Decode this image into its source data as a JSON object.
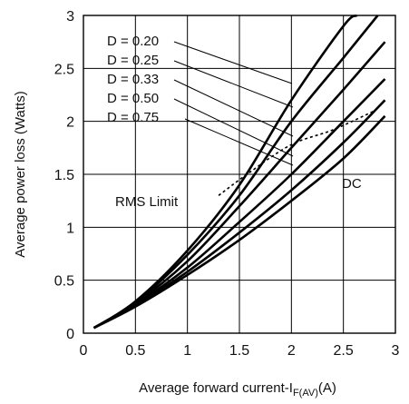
{
  "chart_data": {
    "type": "line",
    "xlabel": "Average forward current-I",
    "xlabel_sub": "F(AV)",
    "xlabel_unit": "(A)",
    "ylabel": "Average power loss (Watts)",
    "xlim": [
      0,
      3
    ],
    "ylim": [
      0,
      3
    ],
    "x_ticks": [
      "0",
      "0.5",
      "1",
      "1.5",
      "2",
      "2.5",
      "3"
    ],
    "y_ticks": [
      "0",
      "0.5",
      "1",
      "1.5",
      "2",
      "2.5",
      "3"
    ],
    "grid": true,
    "series": [
      {
        "name": "D = 0.20",
        "x": [
          0.1,
          0.5,
          1.0,
          1.5,
          2.0,
          2.5,
          2.63
        ],
        "y": [
          0.05,
          0.3,
          0.78,
          1.4,
          2.2,
          2.9,
          3.0
        ]
      },
      {
        "name": "D = 0.25",
        "x": [
          0.1,
          0.5,
          1.0,
          1.5,
          2.0,
          2.5,
          2.83
        ],
        "y": [
          0.05,
          0.29,
          0.74,
          1.3,
          2.0,
          2.6,
          3.0
        ]
      },
      {
        "name": "D = 0.33",
        "x": [
          0.1,
          0.5,
          1.0,
          1.5,
          2.0,
          2.5,
          2.9
        ],
        "y": [
          0.05,
          0.28,
          0.68,
          1.2,
          1.75,
          2.3,
          2.75
        ]
      },
      {
        "name": "D = 0.50",
        "x": [
          0.1,
          0.5,
          1.0,
          1.5,
          2.0,
          2.5,
          2.9
        ],
        "y": [
          0.05,
          0.27,
          0.62,
          1.05,
          1.5,
          2.0,
          2.4
        ]
      },
      {
        "name": "D = 0.75",
        "x": [
          0.1,
          0.5,
          1.0,
          1.5,
          2.0,
          2.5,
          2.9
        ],
        "y": [
          0.05,
          0.26,
          0.58,
          0.95,
          1.35,
          1.8,
          2.2
        ]
      },
      {
        "name": "DC",
        "x": [
          0.1,
          0.5,
          1.0,
          1.5,
          2.0,
          2.5,
          2.9
        ],
        "y": [
          0.05,
          0.25,
          0.55,
          0.88,
          1.25,
          1.65,
          2.05
        ]
      }
    ],
    "rms_limit": {
      "name": "RMS Limit",
      "x": [
        1.3,
        1.6,
        2.0,
        2.4,
        2.8
      ],
      "y": [
        1.3,
        1.52,
        1.78,
        1.92,
        2.1
      ]
    },
    "annotations": [
      "D = 0.20",
      "D = 0.25",
      "D = 0.33",
      "D = 0.50",
      "D = 0.75",
      "DC",
      "RMS Limit"
    ]
  }
}
